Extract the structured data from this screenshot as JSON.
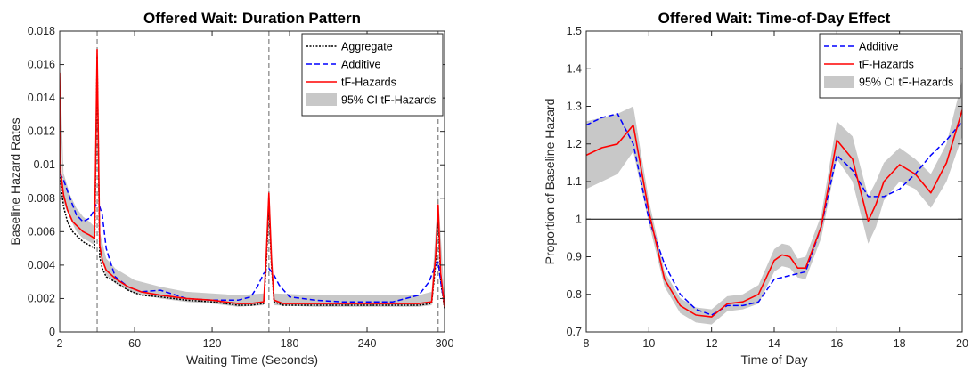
{
  "colors": {
    "aggregate": "#000000",
    "additive": "#0000ff",
    "hazards": "#ff0000",
    "ci": "#c8c8c8",
    "vline": "#808080",
    "refline": "#000000"
  },
  "chart_data": [
    {
      "type": "line",
      "title": "Offered Wait: Duration Pattern",
      "xlabel": "Waiting Time (Seconds)",
      "ylabel": "Baseline Hazard Rates",
      "xlim": [
        2,
        300
      ],
      "ylim": [
        0,
        0.018
      ],
      "xticks": [
        2,
        60,
        120,
        180,
        240,
        300
      ],
      "yticks": [
        0,
        0.002,
        0.004,
        0.006,
        0.008,
        0.01,
        0.012,
        0.014,
        0.016,
        0.018
      ],
      "ytick_labels": [
        "0",
        "0.002",
        "0.004",
        "0.006",
        "0.008",
        "0.01",
        "0.012",
        "0.014",
        "0.016",
        "0.018"
      ],
      "vlines": [
        31,
        164,
        295
      ],
      "grid": false,
      "legend_position": "top-right",
      "legend": [
        "Aggregate",
        "Additive",
        "tF-Hazards",
        "95% CI tF-Hazards"
      ],
      "series": [
        {
          "name": "Aggregate",
          "style": "dotted",
          "x": [
            2,
            3,
            5,
            8,
            12,
            16,
            20,
            25,
            29,
            30,
            31,
            32,
            33,
            35,
            38,
            45,
            55,
            65,
            80,
            100,
            120,
            140,
            150,
            160,
            162,
            164,
            166,
            168,
            175,
            200,
            220,
            240,
            260,
            280,
            290,
            293,
            295,
            297,
            300
          ],
          "y": [
            0.0145,
            0.0088,
            0.0075,
            0.0066,
            0.006,
            0.0057,
            0.0054,
            0.0052,
            0.005,
            0.0105,
            0.0165,
            0.0105,
            0.0045,
            0.0038,
            0.0033,
            0.003,
            0.0025,
            0.0022,
            0.0021,
            0.0019,
            0.0018,
            0.0016,
            0.0016,
            0.0017,
            0.004,
            0.0077,
            0.004,
            0.0018,
            0.0016,
            0.0016,
            0.0016,
            0.0016,
            0.0016,
            0.0016,
            0.0017,
            0.004,
            0.007,
            0.003,
            0.0014
          ]
        },
        {
          "name": "Additive",
          "style": "dashed",
          "x": [
            2,
            5,
            10,
            15,
            20,
            25,
            28,
            30,
            33,
            35,
            38,
            42,
            45,
            55,
            65,
            80,
            100,
            120,
            140,
            150,
            155,
            160,
            164,
            168,
            172,
            180,
            200,
            220,
            240,
            260,
            280,
            288,
            292,
            295,
            297,
            300
          ],
          "y": [
            0.0095,
            0.0091,
            0.008,
            0.007,
            0.0066,
            0.0068,
            0.0072,
            0.0076,
            0.0075,
            0.007,
            0.005,
            0.004,
            0.0033,
            0.0027,
            0.0024,
            0.0025,
            0.002,
            0.0019,
            0.0019,
            0.0021,
            0.0027,
            0.0035,
            0.0038,
            0.0034,
            0.0028,
            0.0021,
            0.0019,
            0.0018,
            0.0018,
            0.0018,
            0.0022,
            0.003,
            0.0038,
            0.0042,
            0.003,
            0.0016
          ]
        },
        {
          "name": "tF-Hazards",
          "style": "solid",
          "x": [
            2,
            3,
            5,
            8,
            12,
            16,
            20,
            25,
            29,
            30,
            31,
            32,
            33,
            35,
            38,
            45,
            55,
            65,
            80,
            100,
            120,
            140,
            150,
            160,
            162,
            164,
            166,
            168,
            175,
            200,
            220,
            240,
            260,
            280,
            290,
            293,
            295,
            297,
            300
          ],
          "y": [
            0.0155,
            0.0095,
            0.0082,
            0.0073,
            0.0066,
            0.0063,
            0.006,
            0.0058,
            0.0056,
            0.0112,
            0.0169,
            0.011,
            0.0052,
            0.0043,
            0.0037,
            0.0032,
            0.0027,
            0.0024,
            0.0022,
            0.002,
            0.0019,
            0.0017,
            0.0017,
            0.0018,
            0.0045,
            0.0083,
            0.0043,
            0.0019,
            0.0017,
            0.0017,
            0.0017,
            0.0017,
            0.0017,
            0.0017,
            0.0018,
            0.0045,
            0.0076,
            0.0035,
            0.0015
          ]
        },
        {
          "name": "95% CI tF-Hazards",
          "style": "band",
          "x": [
            2,
            5,
            10,
            15,
            20,
            25,
            29,
            31,
            33,
            38,
            45,
            60,
            80,
            100,
            120,
            140,
            160,
            164,
            168,
            200,
            240,
            280,
            290,
            295,
            300
          ],
          "lower": [
            0.0145,
            0.0077,
            0.0068,
            0.006,
            0.0056,
            0.0054,
            0.0052,
            0.0162,
            0.0048,
            0.0034,
            0.0029,
            0.0023,
            0.002,
            0.0018,
            0.0017,
            0.0015,
            0.0016,
            0.0076,
            0.0016,
            0.0015,
            0.0015,
            0.0015,
            0.0016,
            0.0069,
            0.0012
          ],
          "upper": [
            0.0165,
            0.0095,
            0.0082,
            0.0074,
            0.0069,
            0.0066,
            0.0063,
            0.0173,
            0.006,
            0.0044,
            0.0038,
            0.0031,
            0.0027,
            0.0024,
            0.0023,
            0.0022,
            0.0023,
            0.009,
            0.0023,
            0.0022,
            0.0022,
            0.0022,
            0.0024,
            0.0083,
            0.002
          ]
        }
      ]
    },
    {
      "type": "line",
      "title": "Offered Wait: Time-of-Day Effect",
      "xlabel": "Time of Day",
      "ylabel": "Proportion of Baseline Hazard",
      "xlim": [
        8,
        20
      ],
      "ylim": [
        0.7,
        1.5
      ],
      "xticks": [
        8,
        10,
        12,
        14,
        16,
        18,
        20
      ],
      "yticks": [
        0.7,
        0.8,
        0.9,
        1,
        1.1,
        1.2,
        1.3,
        1.4,
        1.5
      ],
      "ytick_labels": [
        "0.7",
        "0.8",
        "0.9",
        "1",
        "1.1",
        "1.2",
        "1.3",
        "1.4",
        "1.5"
      ],
      "hline": 1,
      "grid": false,
      "legend_position": "top-right",
      "legend": [
        "Additive",
        "tF-Hazards",
        "95% CI tF-Hazards"
      ],
      "series": [
        {
          "name": "Additive",
          "style": "dashed",
          "x": [
            8,
            8.5,
            9,
            9.5,
            10,
            10.5,
            11,
            11.5,
            12,
            12.5,
            13,
            13.5,
            14,
            14.5,
            15,
            15.5,
            16,
            16.5,
            17,
            17.5,
            18,
            18.5,
            19,
            19.5,
            20
          ],
          "y": [
            1.25,
            1.27,
            1.28,
            1.2,
            1.0,
            0.88,
            0.8,
            0.76,
            0.745,
            0.77,
            0.77,
            0.78,
            0.84,
            0.85,
            0.86,
            0.98,
            1.17,
            1.13,
            1.06,
            1.06,
            1.08,
            1.12,
            1.17,
            1.21,
            1.26
          ]
        },
        {
          "name": "tF-Hazards",
          "style": "solid",
          "x": [
            8,
            8.5,
            9,
            9.5,
            10,
            10.5,
            11,
            11.5,
            12,
            12.5,
            13,
            13.5,
            14,
            14.25,
            14.5,
            14.75,
            15,
            15.5,
            16,
            16.5,
            17,
            17.25,
            17.5,
            18,
            18.5,
            19,
            19.5,
            20
          ],
          "y": [
            1.17,
            1.19,
            1.2,
            1.25,
            1.02,
            0.84,
            0.77,
            0.745,
            0.74,
            0.775,
            0.78,
            0.8,
            0.89,
            0.905,
            0.9,
            0.87,
            0.87,
            0.98,
            1.21,
            1.16,
            0.995,
            1.04,
            1.1,
            1.145,
            1.12,
            1.07,
            1.15,
            1.29
          ]
        },
        {
          "name": "95% CI tF-Hazards",
          "style": "band",
          "x": [
            8,
            8.5,
            9,
            9.5,
            10,
            10.5,
            11,
            11.5,
            12,
            12.5,
            13,
            13.5,
            14,
            14.25,
            14.5,
            14.75,
            15,
            15.5,
            16,
            16.5,
            17,
            17.25,
            17.5,
            18,
            18.5,
            19,
            19.5,
            20
          ],
          "lower": [
            1.08,
            1.1,
            1.12,
            1.18,
            0.99,
            0.82,
            0.75,
            0.725,
            0.72,
            0.755,
            0.76,
            0.775,
            0.86,
            0.875,
            0.87,
            0.845,
            0.84,
            0.95,
            1.16,
            1.1,
            0.935,
            0.98,
            1.05,
            1.1,
            1.08,
            1.03,
            1.1,
            1.22
          ],
          "upper": [
            1.26,
            1.27,
            1.28,
            1.3,
            1.05,
            0.86,
            0.79,
            0.765,
            0.76,
            0.795,
            0.8,
            0.825,
            0.92,
            0.935,
            0.93,
            0.895,
            0.9,
            1.01,
            1.26,
            1.22,
            1.06,
            1.1,
            1.15,
            1.19,
            1.16,
            1.12,
            1.2,
            1.37
          ]
        }
      ]
    }
  ]
}
